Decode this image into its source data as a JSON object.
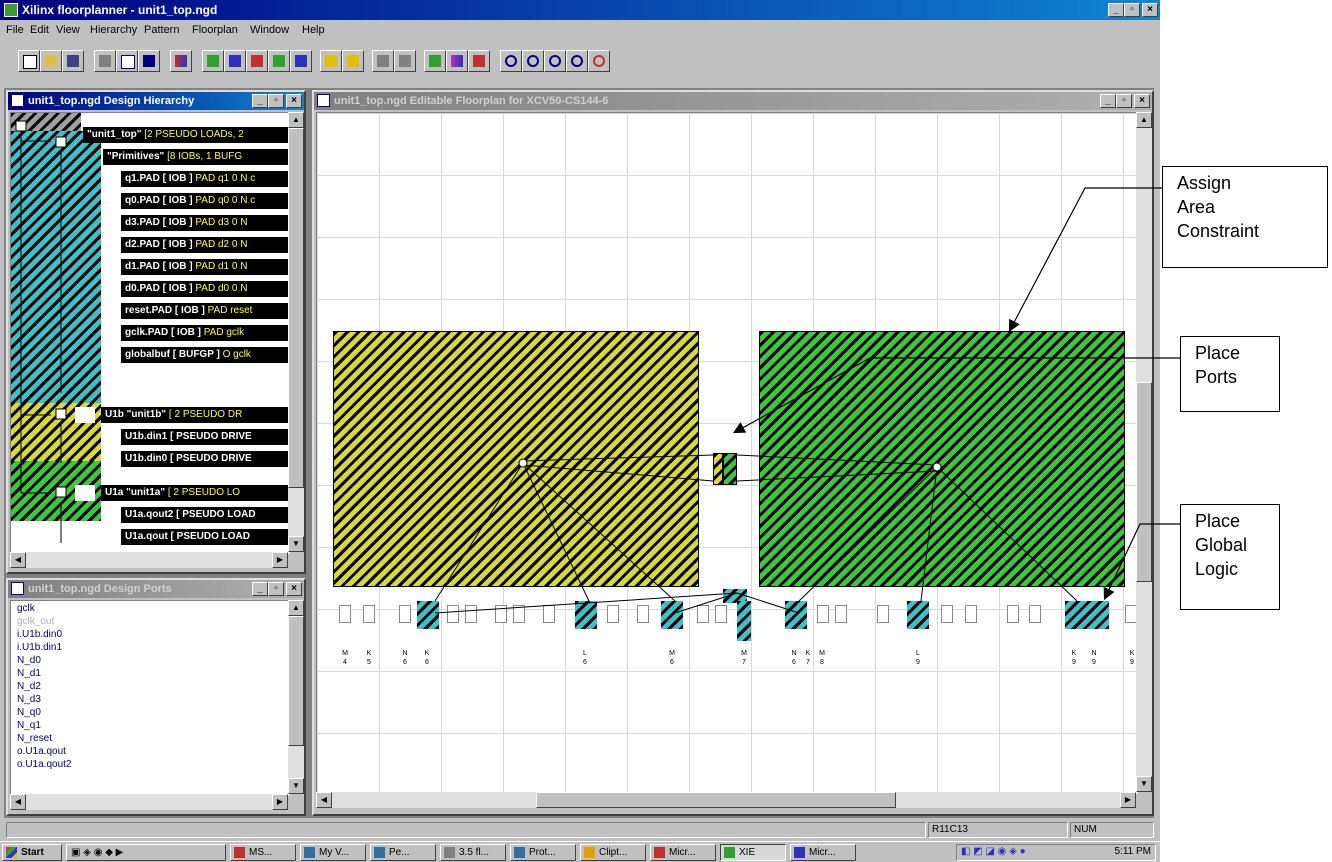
{
  "window": {
    "title": "Xilinx floorplanner - unit1_top.ngd",
    "controls": [
      "_",
      "▫",
      "×"
    ]
  },
  "menu": [
    "File",
    "Edit",
    "View",
    "Hierarchy",
    "Pattern",
    "Floorplan",
    "Window",
    "Help"
  ],
  "toolbar_icons": [
    "new-icon",
    "open-icon",
    "save-icon",
    "print-icon",
    "help-icon",
    "context-help-icon",
    "color-icon",
    "hierarchy-up-icon",
    "hierarchy-down-icon",
    "expand-icon",
    "collapse-icon",
    "pattern-icon",
    "flag-icon",
    "query-icon",
    "route-icon",
    "ratsnest-icon",
    "place-icon",
    "constraint-icon",
    "distribute-icon",
    "zoom-in-icon",
    "zoom-out-icon",
    "zoom-area-icon",
    "zoom-fit-icon",
    "zoom-full-icon"
  ],
  "hierarchy_window": {
    "title": "unit1_top.ngd Design Hierarchy",
    "nodes": [
      {
        "label": "\"unit1_top\"",
        "info": " [2 PSEUDO LOADs, 2"
      },
      {
        "label": "\"Primitives\"",
        "info": " [8 IOBs, 1 BUFG"
      },
      {
        "label": "q1.PAD [ IOB ]",
        "info": " PAD q1 0 N c"
      },
      {
        "label": "q0.PAD [ IOB ]",
        "info": " PAD q0 0 N c"
      },
      {
        "label": "d3.PAD [ IOB ]",
        "info": " PAD d3 0 N"
      },
      {
        "label": "d2.PAD [ IOB ]",
        "info": " PAD d2 0 N"
      },
      {
        "label": "d1.PAD [ IOB ]",
        "info": " PAD d1 0 N"
      },
      {
        "label": "d0.PAD [ IOB ]",
        "info": " PAD d0 0 N"
      },
      {
        "label": "reset.PAD [ IOB ]",
        "info": " PAD reset"
      },
      {
        "label": "gclk.PAD [ IOB ]",
        "info": " PAD gclk"
      },
      {
        "label": "globalbuf [ BUFGP ]",
        "info": " O gclk"
      },
      {
        "label": "U1b \"unit1b\"",
        "info": " [ 2 PSEUDO DR"
      },
      {
        "label": "U1b.din1 [ PSEUDO DRIVE",
        "info": ""
      },
      {
        "label": "U1b.din0 [ PSEUDO DRIVE",
        "info": ""
      },
      {
        "label": "U1a \"unit1a\"",
        "info": " [ 2 PSEUDO LO"
      },
      {
        "label": "U1a.qout2 [ PSEUDO LOAD",
        "info": ""
      },
      {
        "label": "U1a.qout [ PSEUDO LOAD",
        "info": ""
      }
    ]
  },
  "ports_window": {
    "title": "unit1_top.ngd Design Ports",
    "ports": [
      "gclk",
      "gclk_out",
      "i.U1b.din0",
      "i.U1b.din1",
      "N_d0",
      "N_d1",
      "N_d2",
      "N_d3",
      "N_q0",
      "N_q1",
      "N_reset",
      "o.U1a.qout",
      "o.U1a.qout2"
    ]
  },
  "floorplan_window": {
    "title": "unit1_top.ngd Editable Floorplan for XCV50-CS144-6"
  },
  "pin_labels": [
    [
      "M",
      "4"
    ],
    [
      "K",
      "5"
    ],
    [
      "N",
      "6"
    ],
    [
      "K",
      "6"
    ],
    [
      "L",
      "6"
    ],
    [
      "M",
      "6"
    ],
    [
      "M",
      "7"
    ],
    [
      "N",
      "6"
    ],
    [
      "K",
      "7"
    ],
    [
      "M",
      "8"
    ],
    [
      "L",
      "9"
    ],
    [
      "K",
      "9"
    ],
    [
      "N",
      "9"
    ],
    [
      "K",
      "9"
    ]
  ],
  "status": {
    "cell": "R11C13",
    "num": "NUM"
  },
  "taskbar": {
    "start": "Start",
    "buttons": [
      "MS...",
      "My V...",
      "Pe...",
      "3.5 fl...",
      "Prot...",
      "Clipt...",
      "Micr...",
      "XIE",
      "Micr..."
    ],
    "clock": "5:11 PM"
  },
  "callouts": {
    "assign_area": [
      "Assign",
      "Area",
      "Constraint"
    ],
    "place_ports": [
      "Place",
      "Ports"
    ],
    "place_global": [
      "Place",
      "Global",
      "Logic"
    ]
  },
  "colors": {
    "yellow_area": "#d8d83a",
    "green_area": "#3cc83c",
    "cyan_area": "#3fc0c8",
    "title_active": "#000080"
  }
}
